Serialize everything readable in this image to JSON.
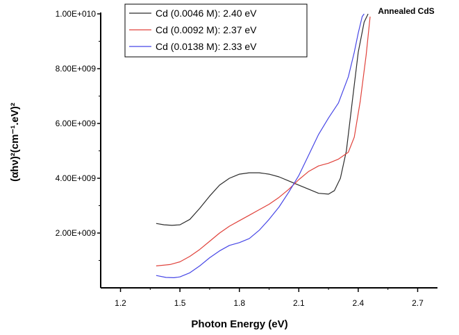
{
  "chart_data": {
    "type": "line",
    "title": "Annealed CdS",
    "xlabel": "Photon Energy (eV)",
    "ylabel": "(αhν)²(cm⁻¹.eV)²",
    "xlim": [
      1.1,
      2.8
    ],
    "ylim": [
      0,
      10000000000
    ],
    "x_ticks": [
      1.2,
      1.5,
      1.8,
      2.1,
      2.4,
      2.7
    ],
    "x_tick_labels": [
      "1.2",
      "1.5",
      "1.8",
      "2.1",
      "2.4",
      "2.7"
    ],
    "y_ticks": [
      2000000000,
      4000000000,
      6000000000,
      8000000000,
      10000000000
    ],
    "y_tick_labels": [
      "2.00E+009",
      "4.00E+009",
      "6.00E+009",
      "8.00E+009",
      "1.00E+010"
    ],
    "grid": false,
    "legend_position": "top",
    "series": [
      {
        "name": "Cd (0.0046 M): 2.40 eV",
        "color": "#2b2b2b",
        "x": [
          1.38,
          1.42,
          1.46,
          1.5,
          1.55,
          1.6,
          1.65,
          1.7,
          1.75,
          1.8,
          1.85,
          1.9,
          1.95,
          2.0,
          2.05,
          2.1,
          2.15,
          2.2,
          2.25,
          2.28,
          2.31,
          2.34,
          2.37,
          2.4,
          2.43,
          2.45
        ],
        "y": [
          2350000000.0,
          2300000000.0,
          2280000000.0,
          2300000000.0,
          2500000000.0,
          2900000000.0,
          3350000000.0,
          3750000000.0,
          4000000000.0,
          4150000000.0,
          4200000000.0,
          4200000000.0,
          4150000000.0,
          4050000000.0,
          3900000000.0,
          3750000000.0,
          3600000000.0,
          3450000000.0,
          3420000000.0,
          3550000000.0,
          4000000000.0,
          5000000000.0,
          6800000000.0,
          8600000000.0,
          9700000000.0,
          10000000000.0
        ]
      },
      {
        "name": "Cd (0.0092 M): 2.37 eV",
        "color": "#e0413a",
        "x": [
          1.38,
          1.45,
          1.5,
          1.55,
          1.6,
          1.65,
          1.7,
          1.75,
          1.8,
          1.85,
          1.9,
          1.95,
          2.0,
          2.05,
          2.1,
          2.15,
          2.2,
          2.25,
          2.3,
          2.35,
          2.38,
          2.41,
          2.44,
          2.46
        ],
        "y": [
          800000000.0,
          850000000.0,
          950000000.0,
          1150000000.0,
          1400000000.0,
          1700000000.0,
          2000000000.0,
          2250000000.0,
          2450000000.0,
          2650000000.0,
          2850000000.0,
          3050000000.0,
          3300000000.0,
          3600000000.0,
          3950000000.0,
          4250000000.0,
          4450000000.0,
          4550000000.0,
          4700000000.0,
          4950000000.0,
          5500000000.0,
          6800000000.0,
          8500000000.0,
          9900000000.0
        ]
      },
      {
        "name": "Cd (0.0138 M):   2.33 eV",
        "color": "#4646e6",
        "x": [
          1.38,
          1.43,
          1.47,
          1.5,
          1.55,
          1.6,
          1.65,
          1.7,
          1.75,
          1.8,
          1.85,
          1.9,
          1.95,
          2.0,
          2.05,
          2.1,
          2.15,
          2.2,
          2.25,
          2.3,
          2.35,
          2.38,
          2.4,
          2.42,
          2.43
        ],
        "y": [
          450000000.0,
          380000000.0,
          370000000.0,
          400000000.0,
          550000000.0,
          800000000.0,
          1100000000.0,
          1350000000.0,
          1550000000.0,
          1650000000.0,
          1800000000.0,
          2100000000.0,
          2500000000.0,
          2950000000.0,
          3500000000.0,
          4100000000.0,
          4850000000.0,
          5600000000.0,
          6200000000.0,
          6750000000.0,
          7700000000.0,
          8600000000.0,
          9300000000.0,
          9900000000.0,
          10000000000.0
        ]
      }
    ]
  }
}
